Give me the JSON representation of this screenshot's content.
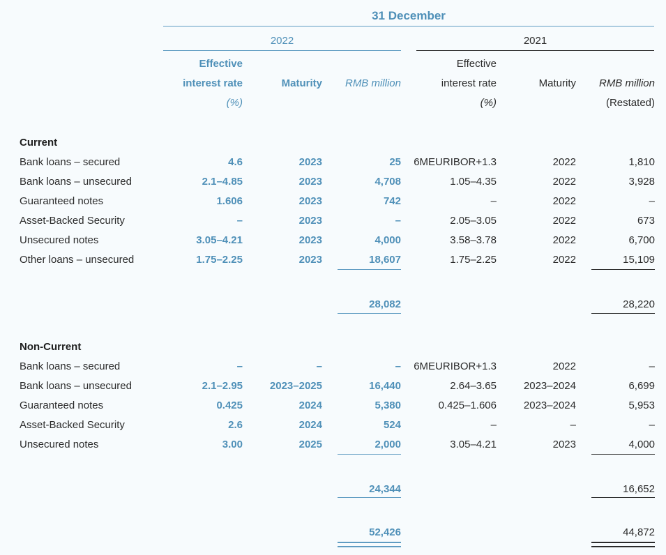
{
  "header": {
    "date_title": "31 December",
    "year_2022": "2022",
    "year_2021": "2021"
  },
  "columns": {
    "c2022": {
      "rate_line1": "Effective",
      "rate_line2": "interest rate",
      "rate_line3": "(%)",
      "maturity": "Maturity",
      "amount": "RMB million"
    },
    "c2021": {
      "rate_line1": "Effective",
      "rate_line2": "interest rate",
      "rate_line3": "(%)",
      "maturity": "Maturity",
      "amount": "RMB million",
      "amount_note": "(Restated)"
    }
  },
  "current": {
    "title": "Current",
    "rows": [
      {
        "label": "Bank loans – secured",
        "rate22": "4.6",
        "mat22": "2023",
        "amt22": "25",
        "rate21": "6MEURIBOR+1.3",
        "mat21": "2022",
        "amt21": "1,810"
      },
      {
        "label": "Bank loans – unsecured",
        "rate22": "2.1–4.85",
        "mat22": "2023",
        "amt22": "4,708",
        "rate21": "1.05–4.35",
        "mat21": "2022",
        "amt21": "3,928"
      },
      {
        "label": "Guaranteed notes",
        "rate22": "1.606",
        "mat22": "2023",
        "amt22": "742",
        "rate21": "–",
        "mat21": "2022",
        "amt21": "–"
      },
      {
        "label": "Asset-Backed Security",
        "rate22": "–",
        "mat22": "2023",
        "amt22": "–",
        "rate21": "2.05–3.05",
        "mat21": "2022",
        "amt21": "673"
      },
      {
        "label": "Unsecured notes",
        "rate22": "3.05–4.21",
        "mat22": "2023",
        "amt22": "4,000",
        "rate21": "3.58–3.78",
        "mat21": "2022",
        "amt21": "6,700"
      },
      {
        "label": "Other loans – unsecured",
        "rate22": "1.75–2.25",
        "mat22": "2023",
        "amt22": "18,607",
        "rate21": "1.75–2.25",
        "mat21": "2022",
        "amt21": "15,109"
      }
    ],
    "total22": "28,082",
    "total21": "28,220"
  },
  "noncurrent": {
    "title": "Non-Current",
    "rows": [
      {
        "label": "Bank loans – secured",
        "rate22": "–",
        "mat22": "–",
        "amt22": "–",
        "rate21": "6MEURIBOR+1.3",
        "mat21": "2022",
        "amt21": "–"
      },
      {
        "label": "Bank loans – unsecured",
        "rate22": "2.1–2.95",
        "mat22": "2023–2025",
        "amt22": "16,440",
        "rate21": "2.64–3.65",
        "mat21": "2023–2024",
        "amt21": "6,699"
      },
      {
        "label": "Guaranteed notes",
        "rate22": "0.425",
        "mat22": "2024",
        "amt22": "5,380",
        "rate21": "0.425–1.606",
        "mat21": "2023–2024",
        "amt21": "5,953"
      },
      {
        "label": "Asset-Backed Security",
        "rate22": "2.6",
        "mat22": "2024",
        "amt22": "524",
        "rate21": "–",
        "mat21": "–",
        "amt21": "–"
      },
      {
        "label": "Unsecured notes",
        "rate22": "3.00",
        "mat22": "2025",
        "amt22": "2,000",
        "rate21": "3.05–4.21",
        "mat21": "2023",
        "amt21": "4,000"
      }
    ],
    "total22": "24,344",
    "total21": "16,652"
  },
  "grand_total": {
    "total22": "52,426",
    "total21": "44,872"
  }
}
